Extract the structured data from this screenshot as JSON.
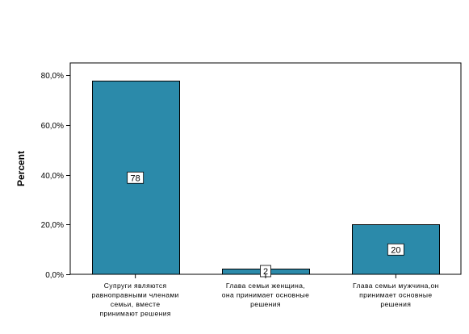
{
  "chart_data": {
    "type": "bar",
    "ylabel": "Percent",
    "xlabel": "",
    "title": "",
    "ylim": [
      0,
      85
    ],
    "yticks": [
      0,
      20,
      40,
      60,
      80
    ],
    "ytick_labels": [
      "0,0%",
      "20,0%",
      "40,0%",
      "60,0%",
      "80,0%"
    ],
    "categories": [
      [
        "Супруги являются",
        "равноправными членами",
        "семьи, вместе",
        "принимают решения"
      ],
      [
        "Глава семьи женщина,",
        "она принимает основные",
        "решения"
      ],
      [
        "Глава семьи мужчина,он",
        "принимает основные",
        "решения"
      ]
    ],
    "values": [
      77.8,
      2.2,
      20.0
    ],
    "data_labels": [
      "78",
      "2",
      "20"
    ],
    "bar_color": "#2b8aaa",
    "grid": false,
    "legend": "none"
  }
}
